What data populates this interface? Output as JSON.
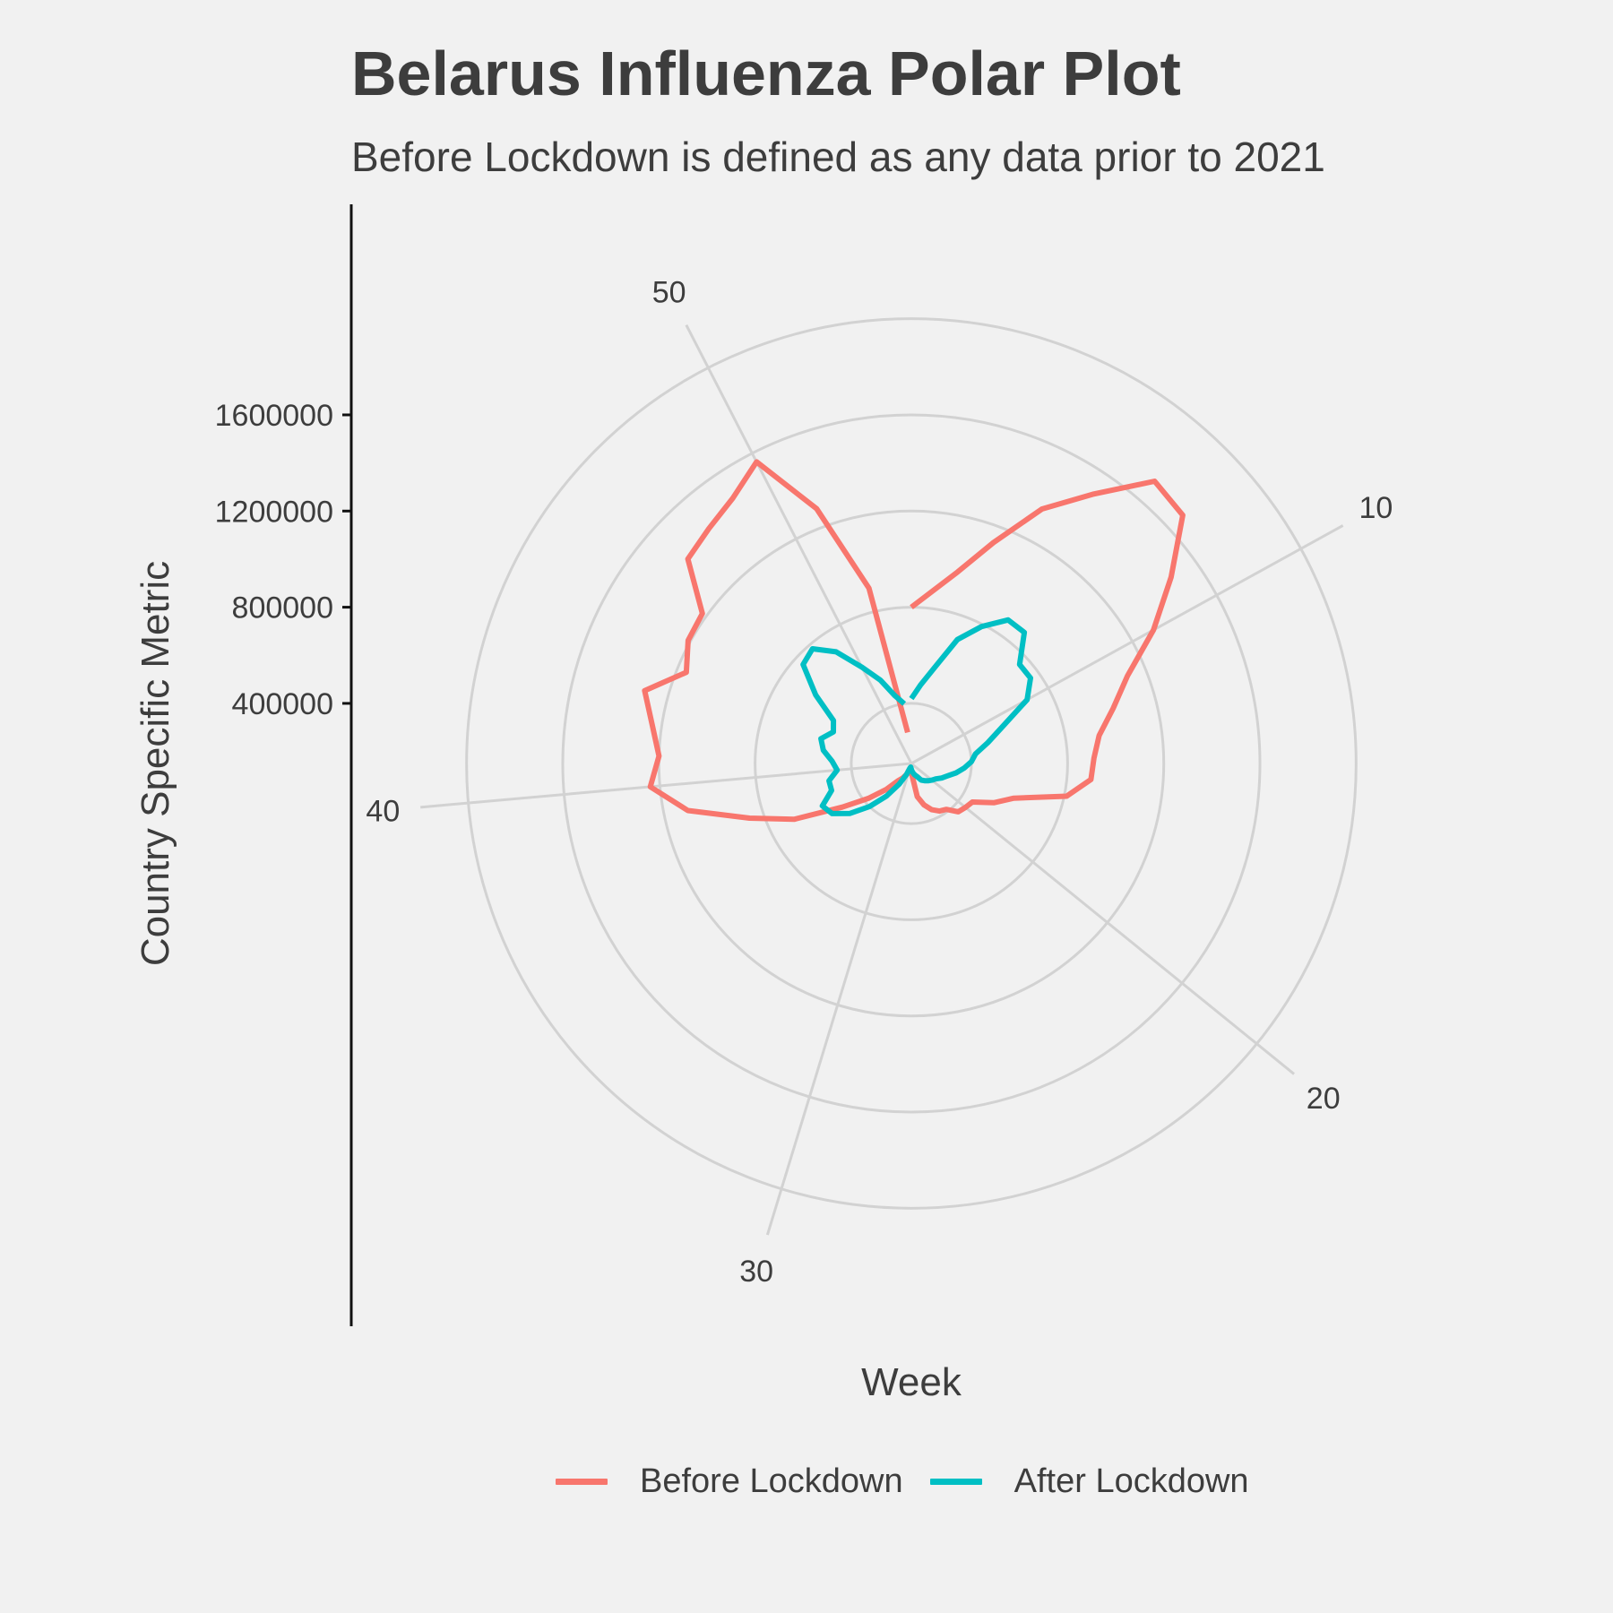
{
  "chart_data": {
    "type": "line",
    "coordinate_system": "polar",
    "title": "Belarus Influenza Polar Plot",
    "subtitle": "Before Lockdown is defined as any data prior to 2021",
    "xlabel": "Week",
    "ylabel": "Country Specific Metric",
    "x_ticks": [
      10,
      20,
      30,
      40,
      50
    ],
    "y_ticks": [
      400000,
      800000,
      1200000,
      1600000
    ],
    "y_tick_labels": [
      "400000",
      "800000",
      "1200000",
      "1600000"
    ],
    "radial_range": [
      150000,
      2200000
    ],
    "x_range": [
      1,
      53
    ],
    "grid": true,
    "legend_position": "bottom",
    "series": [
      {
        "name": "Before Lockdown",
        "color": "#F8766D",
        "x": [
          1,
          2,
          3,
          4,
          5,
          6,
          7,
          8,
          9,
          10,
          11,
          12,
          13,
          14,
          15,
          16,
          17,
          18,
          19,
          20,
          21,
          22,
          23,
          24,
          25,
          26,
          27,
          28,
          29,
          30,
          31,
          32,
          33,
          34,
          35,
          36,
          37,
          38,
          39,
          40,
          41,
          42,
          43,
          44,
          45,
          46,
          47,
          48,
          49,
          50,
          51,
          52,
          53
        ],
        "y": [
          800000,
          870000,
          970000,
          1130000,
          1340000,
          1500000,
          1700000,
          1680000,
          1480000,
          1300000,
          1120000,
          1020000,
          940000,
          910000,
          900000,
          810000,
          600000,
          530000,
          450000,
          440000,
          430000,
          390000,
          380000,
          360000,
          330000,
          290000,
          200000,
          180000,
          175000,
          185000,
          200000,
          220000,
          240000,
          300000,
          380000,
          490000,
          690000,
          860000,
          1100000,
          1240000,
          1200000,
          1240000,
          1300000,
          1160000,
          1210000,
          1220000,
          1410000,
          1440000,
          1480000,
          1560000,
          1280000,
          900000,
          280000
        ]
      },
      {
        "name": "After Lockdown",
        "color": "#00BFC4",
        "x": [
          1,
          2,
          3,
          4,
          5,
          6,
          7,
          8,
          9,
          10,
          11,
          12,
          13,
          14,
          15,
          16,
          17,
          18,
          19,
          20,
          21,
          22,
          23,
          24,
          25,
          26,
          27,
          28,
          29,
          30,
          31,
          32,
          33,
          34,
          35,
          36,
          37,
          38,
          39,
          40,
          41,
          42,
          43,
          44,
          45,
          46,
          47,
          48,
          49,
          50,
          51,
          52,
          53
        ],
        "y": [
          420000,
          480000,
          560000,
          700000,
          790000,
          870000,
          870000,
          760000,
          760000,
          700000,
          560000,
          480000,
          420000,
          400000,
          370000,
          340000,
          310000,
          290000,
          270000,
          260000,
          250000,
          240000,
          230000,
          210000,
          200000,
          190000,
          180000,
          170000,
          165000,
          170000,
          200000,
          250000,
          320000,
          400000,
          480000,
          540000,
          560000,
          500000,
          500000,
          460000,
          480000,
          520000,
          540000,
          500000,
          520000,
          640000,
          760000,
          780000,
          710000,
          600000,
          520000,
          440000,
          400000
        ]
      }
    ]
  },
  "legend": {
    "items": [
      {
        "label": "Before Lockdown",
        "color": "#F8766D"
      },
      {
        "label": "After Lockdown",
        "color": "#00BFC4"
      }
    ]
  }
}
